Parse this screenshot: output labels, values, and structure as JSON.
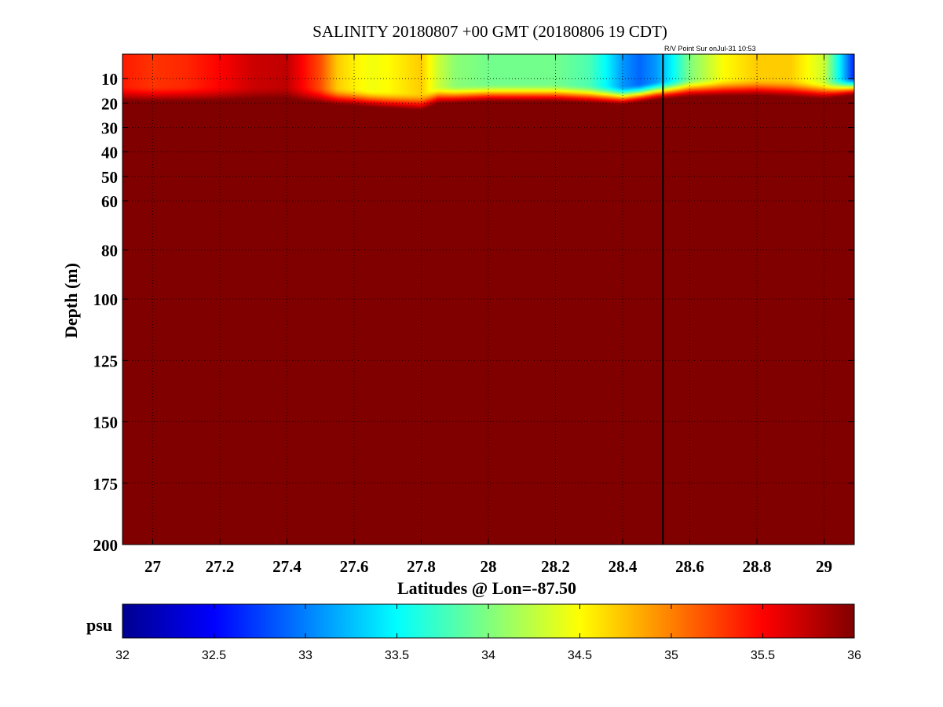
{
  "chart_data": [
    {
      "type": "heatmap",
      "title": "SALINITY 20180807 +00 GMT (20180806 19 CDT)",
      "annotation": "R/V Point Sur onJul-31 10:53",
      "xlabel": "Latitudes @ Lon=-87.50",
      "ylabel": "Depth (m)",
      "xlim": [
        26.91,
        29.09
      ],
      "ylim": [
        200,
        0
      ],
      "y_axis_scale": "piecewise: linear 0–60 m (expanded), linear 60–200 m (compressed)",
      "x_ticks": [
        {
          "value": 27,
          "label": "27"
        },
        {
          "value": 27.2,
          "label": "27.2"
        },
        {
          "value": 27.4,
          "label": "27.4"
        },
        {
          "value": 27.6,
          "label": "27.6"
        },
        {
          "value": 27.8,
          "label": "27.8"
        },
        {
          "value": 28,
          "label": "28"
        },
        {
          "value": 28.2,
          "label": "28.2"
        },
        {
          "value": 28.4,
          "label": "28.4"
        },
        {
          "value": 28.6,
          "label": "28.6"
        },
        {
          "value": 28.8,
          "label": "28.8"
        },
        {
          "value": 29,
          "label": "29"
        }
      ],
      "y_ticks": [
        {
          "value": 10,
          "label": "10"
        },
        {
          "value": 20,
          "label": "20"
        },
        {
          "value": 30,
          "label": "30"
        },
        {
          "value": 40,
          "label": "40"
        },
        {
          "value": 50,
          "label": "50"
        },
        {
          "value": 60,
          "label": "60"
        },
        {
          "value": 80,
          "label": "80"
        },
        {
          "value": 100,
          "label": "100"
        },
        {
          "value": 125,
          "label": "125"
        },
        {
          "value": 150,
          "label": "150"
        },
        {
          "value": 175,
          "label": "175"
        },
        {
          "value": 200,
          "label": "200"
        }
      ],
      "grid": "dotted",
      "marker_line": {
        "latitude": 28.52,
        "description": "vertical ship-position line"
      },
      "surface_profile": {
        "depth_m": 2,
        "lat": [
          26.91,
          27.0,
          27.1,
          27.2,
          27.3,
          27.4,
          27.5,
          27.55,
          27.6,
          27.65,
          27.7,
          27.75,
          27.8,
          27.85,
          27.9,
          28.0,
          28.1,
          28.2,
          28.3,
          28.35,
          28.4,
          28.45,
          28.5,
          28.55,
          28.6,
          28.7,
          28.8,
          28.9,
          29.0,
          29.05,
          29.09
        ],
        "salinity_psu": [
          35.4,
          35.3,
          35.35,
          35.5,
          35.7,
          35.75,
          35.2,
          34.7,
          34.55,
          34.45,
          34.5,
          34.6,
          34.7,
          34.3,
          34.05,
          33.95,
          33.95,
          33.95,
          33.8,
          33.5,
          33.1,
          32.9,
          33.1,
          33.5,
          34.0,
          34.5,
          34.7,
          34.7,
          34.3,
          33.4,
          32.6
        ]
      },
      "halocline_depth_profile": {
        "lat": [
          26.91,
          27.2,
          27.4,
          27.6,
          27.8,
          27.85,
          28.0,
          28.2,
          28.4,
          28.5,
          28.6,
          28.8,
          29.0,
          29.09
        ],
        "depth_m": [
          22,
          22,
          22,
          23,
          25,
          22,
          21,
          21,
          22,
          20,
          19,
          19,
          20,
          18
        ]
      },
      "deep_value_psu": 36.2
    },
    {
      "type": "colorbar",
      "label": "psu",
      "range": [
        32,
        36
      ],
      "colormap": "jet",
      "ticks": [
        "32",
        "32.5",
        "33",
        "33.5",
        "34",
        "34.5",
        "35",
        "35.5",
        "36"
      ]
    }
  ],
  "colors": {
    "jet": [
      "#00008f",
      "#0000ff",
      "#00ffff",
      "#ffff00",
      "#ff0000",
      "#800000"
    ],
    "axis": "#000000",
    "grid": "#000000",
    "background": "#ffffff"
  }
}
